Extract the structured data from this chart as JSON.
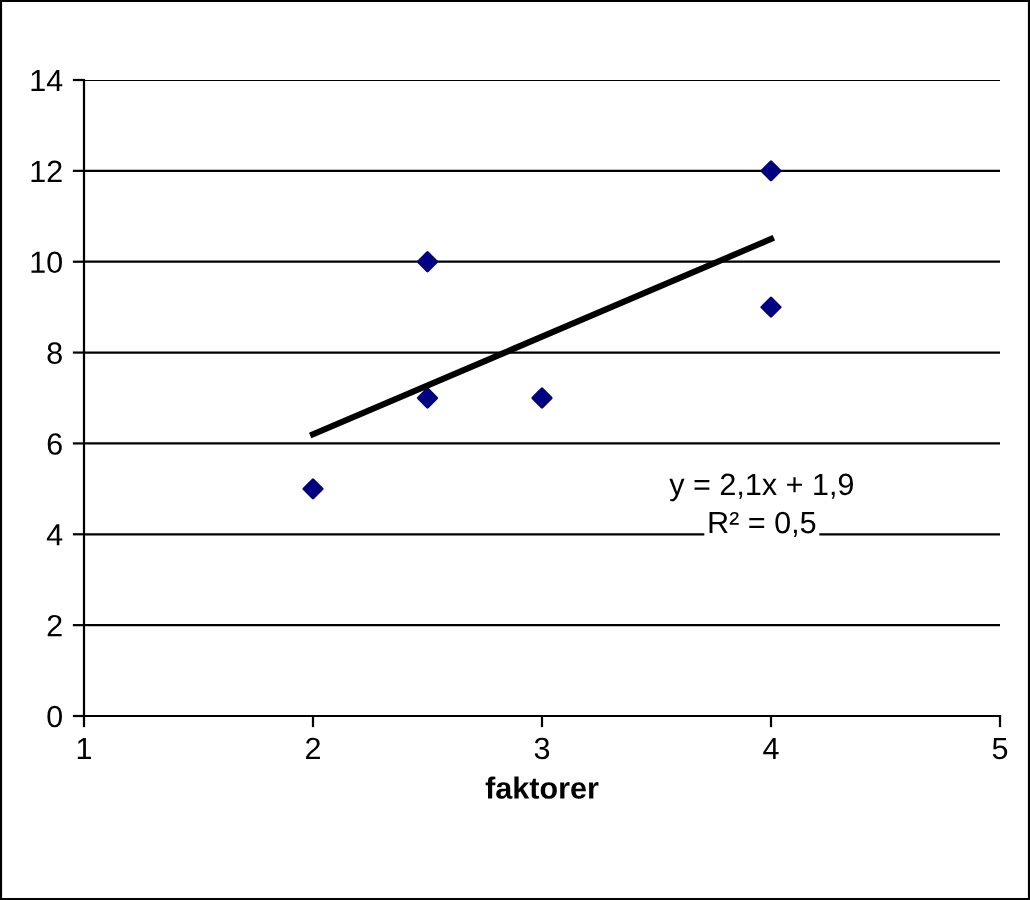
{
  "chart_data": {
    "type": "scatter",
    "xlabel": "faktorer",
    "series": [
      {
        "color": "#000080",
        "marker": "diamond",
        "x": [
          2,
          2.5,
          2.5,
          3,
          4,
          4
        ],
        "values": [
          5,
          10,
          7,
          7,
          12,
          9
        ]
      },
      {
        "type": "line",
        "color": "#000000",
        "marker": "none",
        "line_style": "solid",
        "x": [
          2,
          4
        ],
        "values": [
          6.2,
          10.5
        ]
      }
    ],
    "annotations": [
      "y = 2,1x + 1,9",
      "R² = 0,5"
    ],
    "xlim": [
      1,
      5
    ],
    "xticks": [
      1,
      2,
      3,
      4,
      5
    ],
    "ylim": [
      0,
      14
    ],
    "yticks": [
      0,
      2,
      4,
      6,
      8,
      10,
      12,
      14
    ],
    "grid": "y",
    "legend": false
  }
}
